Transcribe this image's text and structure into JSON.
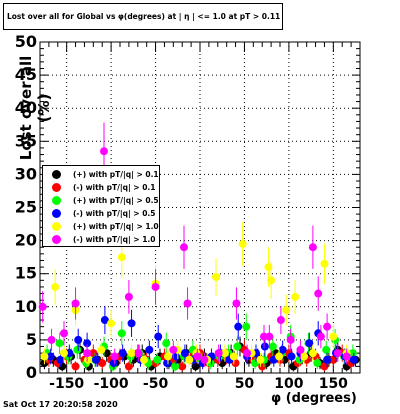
{
  "title": "Lost over all for Global vs φ(degrees) at | η | <= 1.0 at pT > 0.11",
  "timestamp": "Sat Oct 17 20:20:58 2020",
  "chart_data": {
    "type": "scatter",
    "title": "Lost over all for Global vs φ(degrees) at | η | <= 1.0 at pT > 0.11",
    "xlabel": "φ (degrees)",
    "ylabel": "Lost over all (%)",
    "xlim": [
      -180,
      180
    ],
    "ylim": [
      0,
      50
    ],
    "xticks": [
      -150,
      -100,
      -50,
      0,
      50,
      100,
      150
    ],
    "yticks": [
      0,
      5,
      10,
      15,
      20,
      25,
      30,
      35,
      40,
      45,
      50
    ],
    "grid": true,
    "legend_position": "upper-left",
    "series": [
      {
        "name": "(+) with pT/|q| > 0.1",
        "color": "#000000",
        "x": [
          -175,
          -165,
          -155,
          -145,
          -135,
          -125,
          -115,
          -105,
          -95,
          -85,
          -75,
          -65,
          -55,
          -45,
          -35,
          -25,
          -15,
          -5,
          5,
          15,
          25,
          35,
          45,
          55,
          65,
          75,
          85,
          95,
          105,
          115,
          125,
          135,
          145,
          155,
          165,
          175
        ],
        "y": [
          1.5,
          2.0,
          1.0,
          2.5,
          3.5,
          1.0,
          2.0,
          3.0,
          1.5,
          2.5,
          2.0,
          3.0,
          1.0,
          2.5,
          1.5,
          2.0,
          3.0,
          1.0,
          2.5,
          2.0,
          1.5,
          3.0,
          4.0,
          2.0,
          2.5,
          1.5,
          3.0,
          2.0,
          1.0,
          2.5,
          3.0,
          1.5,
          2.0,
          3.5,
          1.0,
          2.0
        ]
      },
      {
        "name": "(-) with pT/|q| > 0.1",
        "color": "#ff0000",
        "x": [
          -170,
          -160,
          -150,
          -140,
          -130,
          -120,
          -110,
          -100,
          -90,
          -80,
          -70,
          -60,
          -50,
          -40,
          -30,
          -20,
          -10,
          0,
          10,
          20,
          30,
          40,
          50,
          60,
          70,
          80,
          90,
          100,
          110,
          120,
          130,
          140,
          150,
          160,
          170
        ],
        "y": [
          2.0,
          1.5,
          2.5,
          1.0,
          2.0,
          3.0,
          1.5,
          2.0,
          2.5,
          1.0,
          3.0,
          2.0,
          1.5,
          2.5,
          2.0,
          1.0,
          2.5,
          3.0,
          1.5,
          2.0,
          2.5,
          1.5,
          3.5,
          2.0,
          1.0,
          2.5,
          2.0,
          3.0,
          1.5,
          2.0,
          2.5,
          1.0,
          2.0,
          3.0,
          1.5
        ]
      },
      {
        "name": "(+) with pT/|q| > 0.5",
        "color": "#00ff00",
        "x": [
          -172,
          -158,
          -148,
          -138,
          -128,
          -118,
          -108,
          -98,
          -88,
          -78,
          -68,
          -58,
          -48,
          -38,
          -28,
          -18,
          -8,
          2,
          12,
          22,
          32,
          42,
          52,
          62,
          72,
          82,
          92,
          102,
          112,
          122,
          132,
          142,
          152,
          162,
          172
        ],
        "y": [
          3.0,
          4.5,
          2.5,
          3.5,
          1.5,
          2.0,
          4.0,
          1.0,
          6.0,
          2.5,
          3.0,
          1.5,
          2.0,
          4.5,
          1.0,
          2.5,
          3.5,
          2.0,
          1.5,
          2.5,
          3.0,
          4.0,
          7.0,
          1.5,
          2.0,
          4.0,
          3.0,
          5.5,
          2.0,
          4.5,
          1.5,
          3.5,
          5.0,
          2.5,
          3.0
        ]
      },
      {
        "name": "(-) with pT/|q| > 0.5",
        "color": "#0000ff",
        "x": [
          -168,
          -157,
          -147,
          -137,
          -127,
          -117,
          -107,
          -97,
          -87,
          -77,
          -67,
          -57,
          -47,
          -37,
          -27,
          -17,
          -7,
          3,
          13,
          23,
          33,
          43,
          53,
          63,
          73,
          83,
          93,
          103,
          113,
          123,
          133,
          143,
          153,
          163,
          173
        ],
        "y": [
          2.5,
          2.0,
          3.0,
          5.0,
          4.5,
          2.0,
          8.0,
          1.5,
          3.0,
          7.5,
          2.0,
          3.5,
          5.5,
          1.5,
          2.5,
          3.0,
          2.0,
          1.5,
          2.5,
          3.0,
          2.0,
          7.0,
          2.5,
          3.0,
          4.0,
          2.0,
          3.5,
          2.5,
          3.0,
          4.5,
          6.0,
          2.0,
          3.0,
          2.5,
          2.0
        ]
      },
      {
        "name": "(+) with pT/|q| > 1.0",
        "color": "#ffff00",
        "x": [
          -175,
          -163,
          -153,
          -140,
          -126,
          -111,
          -100,
          -88,
          -77,
          -63,
          -50,
          -36,
          -25,
          -12,
          -4,
          8,
          18,
          28,
          38,
          48,
          58,
          68,
          77,
          80,
          89,
          97,
          107,
          117,
          127,
          140,
          150,
          165
        ],
        "y": [
          2.5,
          13.0,
          3.0,
          9.5,
          2.0,
          3.5,
          7.5,
          17.5,
          3.0,
          2.0,
          13.5,
          2.5,
          3.5,
          2.0,
          3.0,
          2.0,
          14.5,
          3.0,
          2.5,
          19.5,
          3.0,
          2.0,
          16.0,
          14.0,
          2.5,
          9.5,
          11.5,
          2.5,
          3.0,
          16.5,
          5.5,
          3.0
        ]
      },
      {
        "name": "(-) with pT/|q| > 1.0",
        "color": "#ff00ff",
        "x": [
          -177,
          -167,
          -153,
          -140,
          -127,
          -108,
          -96,
          -80,
          -69,
          -50,
          -30,
          -18,
          -14,
          -3,
          5,
          21,
          41,
          53,
          72,
          78,
          91,
          102,
          113,
          127,
          133,
          136,
          143,
          155,
          165
        ],
        "y": [
          10.0,
          5.0,
          6.0,
          10.5,
          3.0,
          33.5,
          2.5,
          11.5,
          3.0,
          13.0,
          3.5,
          19.0,
          10.5,
          2.5,
          2.0,
          3.0,
          10.5,
          3.0,
          5.5,
          5.5,
          8.0,
          5.0,
          3.5,
          19.0,
          12.0,
          5.5,
          7.0,
          3.0,
          2.5
        ]
      }
    ]
  }
}
